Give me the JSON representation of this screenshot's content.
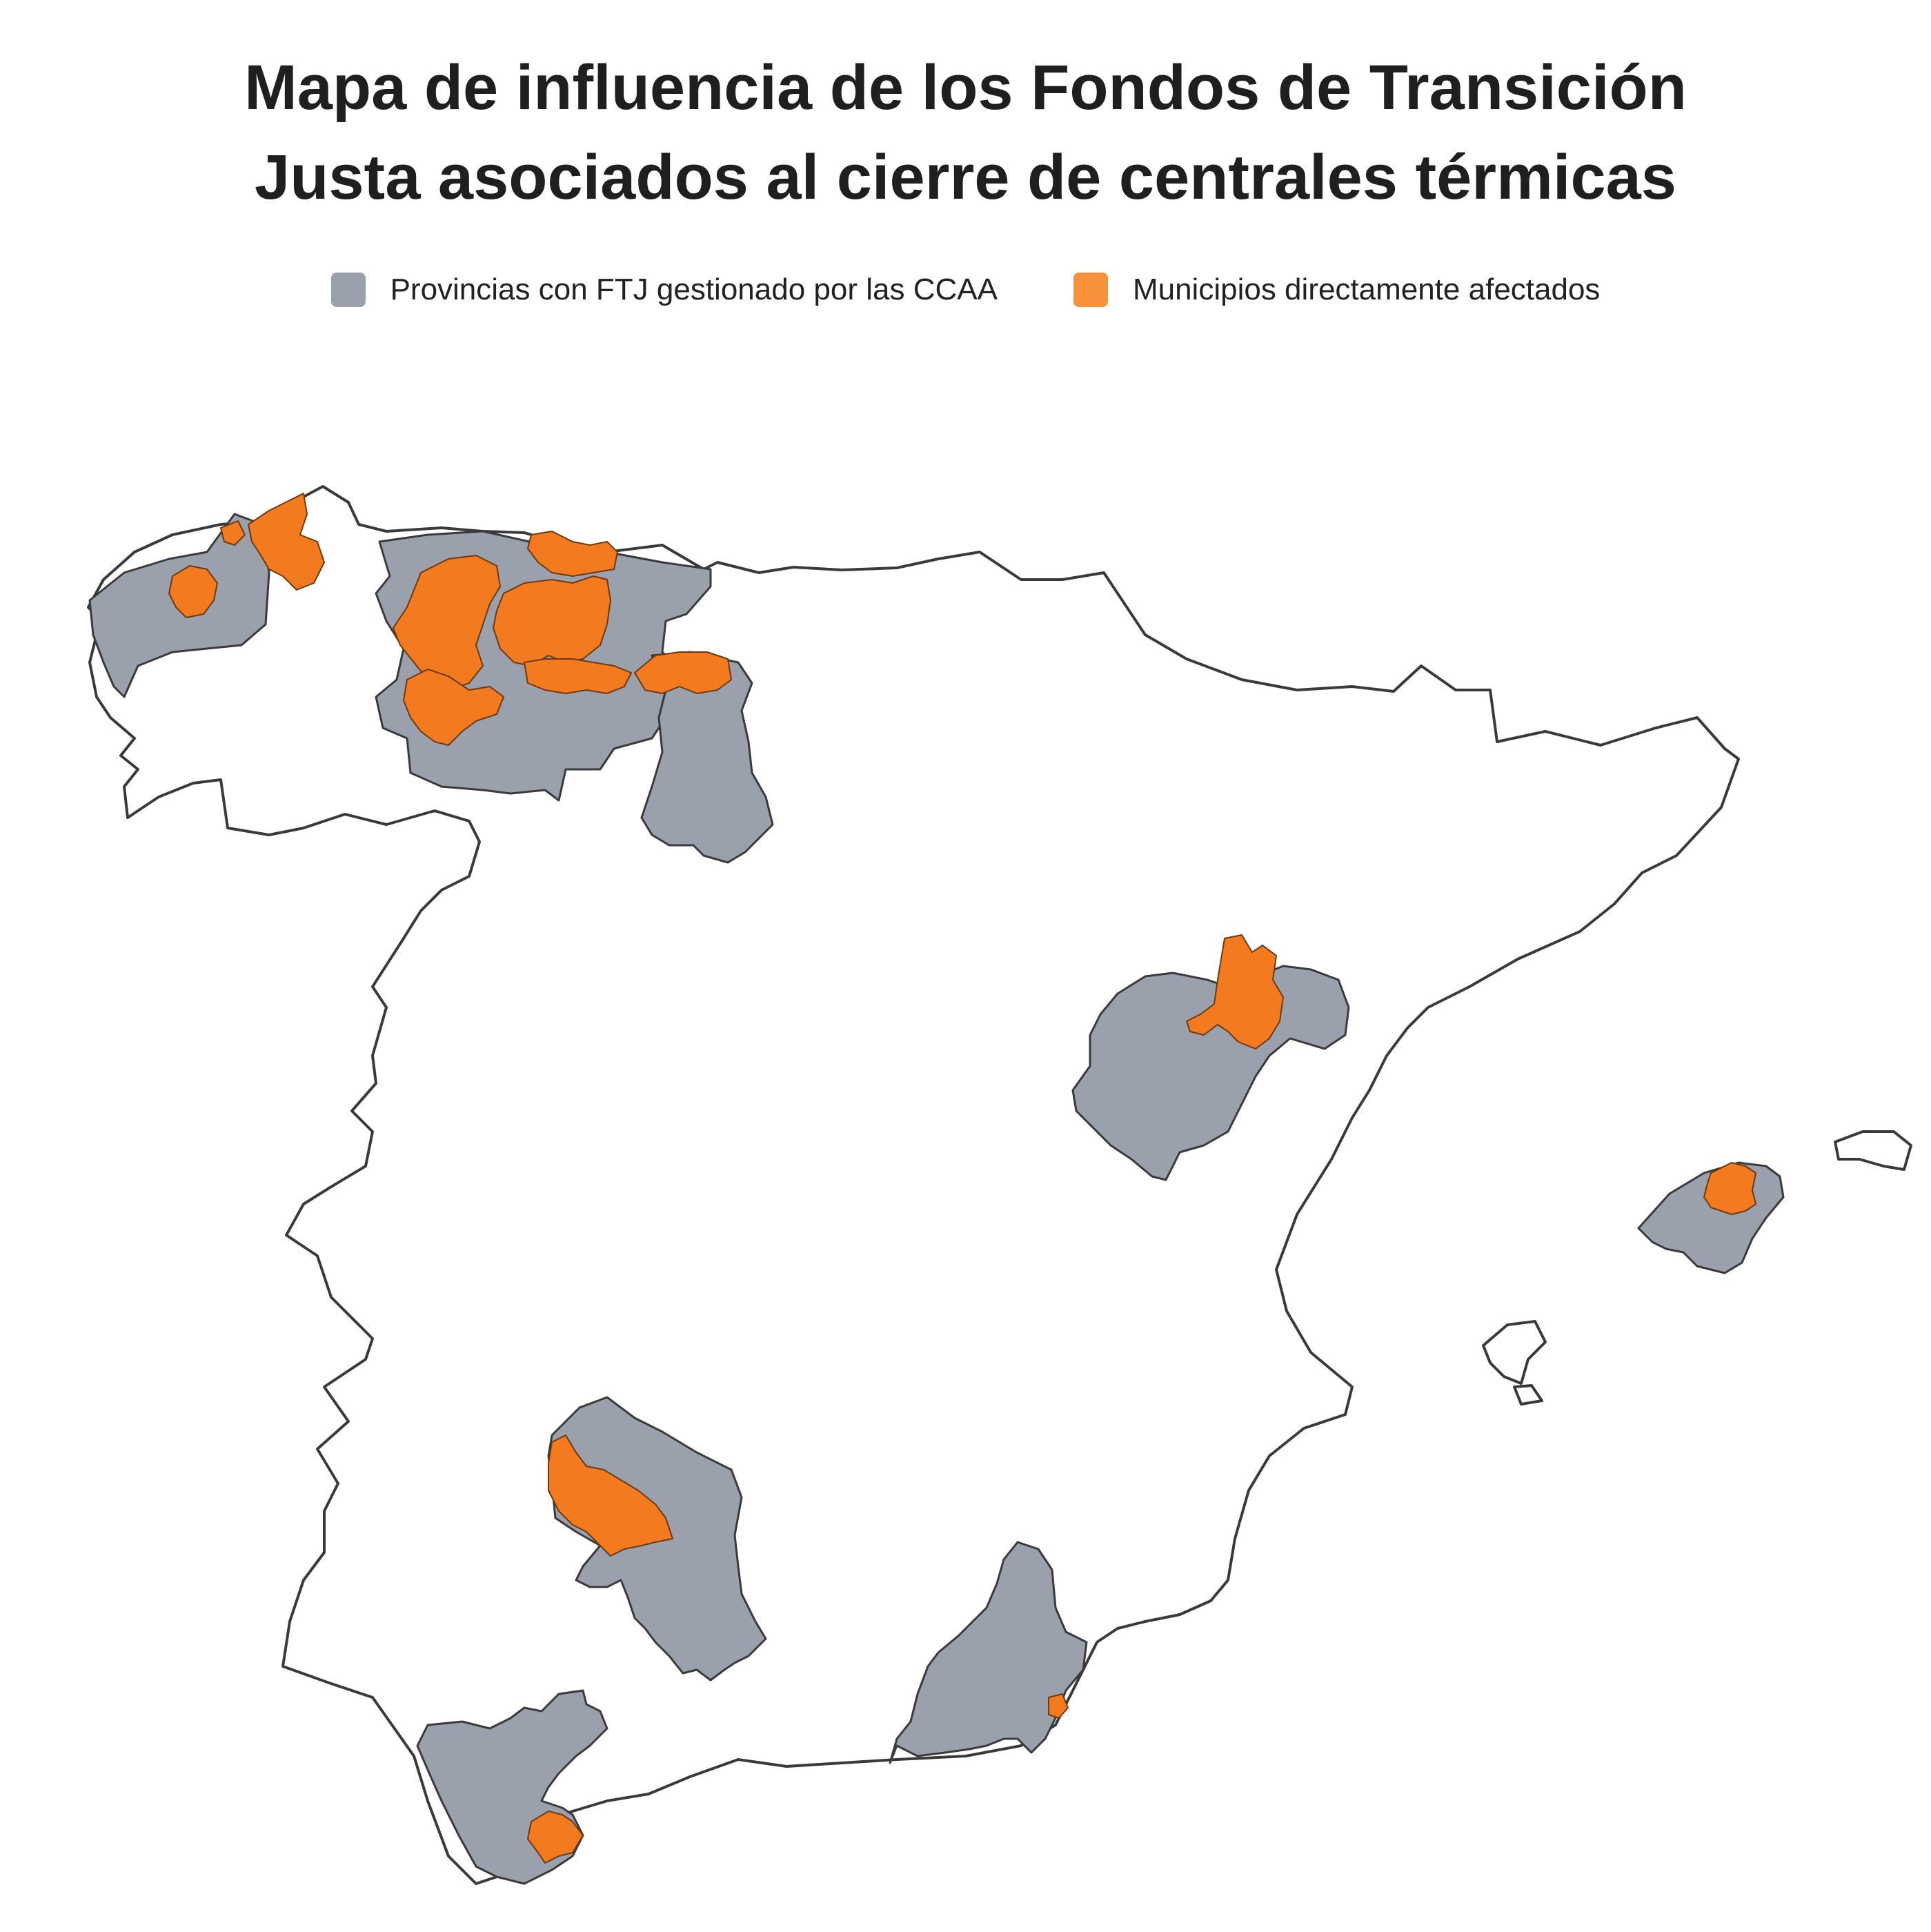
{
  "title": {
    "line1": "Mapa de influencia de los Fondos de Transición",
    "line2": "Justa asociados al cierre de centrales térmicas"
  },
  "legend": [
    {
      "label": "Provincias con FTJ gestionado por las CCAA",
      "color": "#9aa1ad"
    },
    {
      "label": "Municipios directamente afectados",
      "color": "#f7923a"
    }
  ],
  "colors": {
    "province_fill": "#9aa1ad",
    "municipality_fill": "#f47a20",
    "outline": "#3a3a3a",
    "land": "#ffffff"
  },
  "regions": [
    {
      "name": "Galicia (A Coruña / Lugo)",
      "type": "province"
    },
    {
      "name": "Asturias / León / Palencia",
      "type": "province"
    },
    {
      "name": "Teruel",
      "type": "province"
    },
    {
      "name": "Mallorca",
      "type": "province"
    },
    {
      "name": "Córdoba",
      "type": "province"
    },
    {
      "name": "Almería",
      "type": "province"
    },
    {
      "name": "Cádiz",
      "type": "province"
    }
  ]
}
